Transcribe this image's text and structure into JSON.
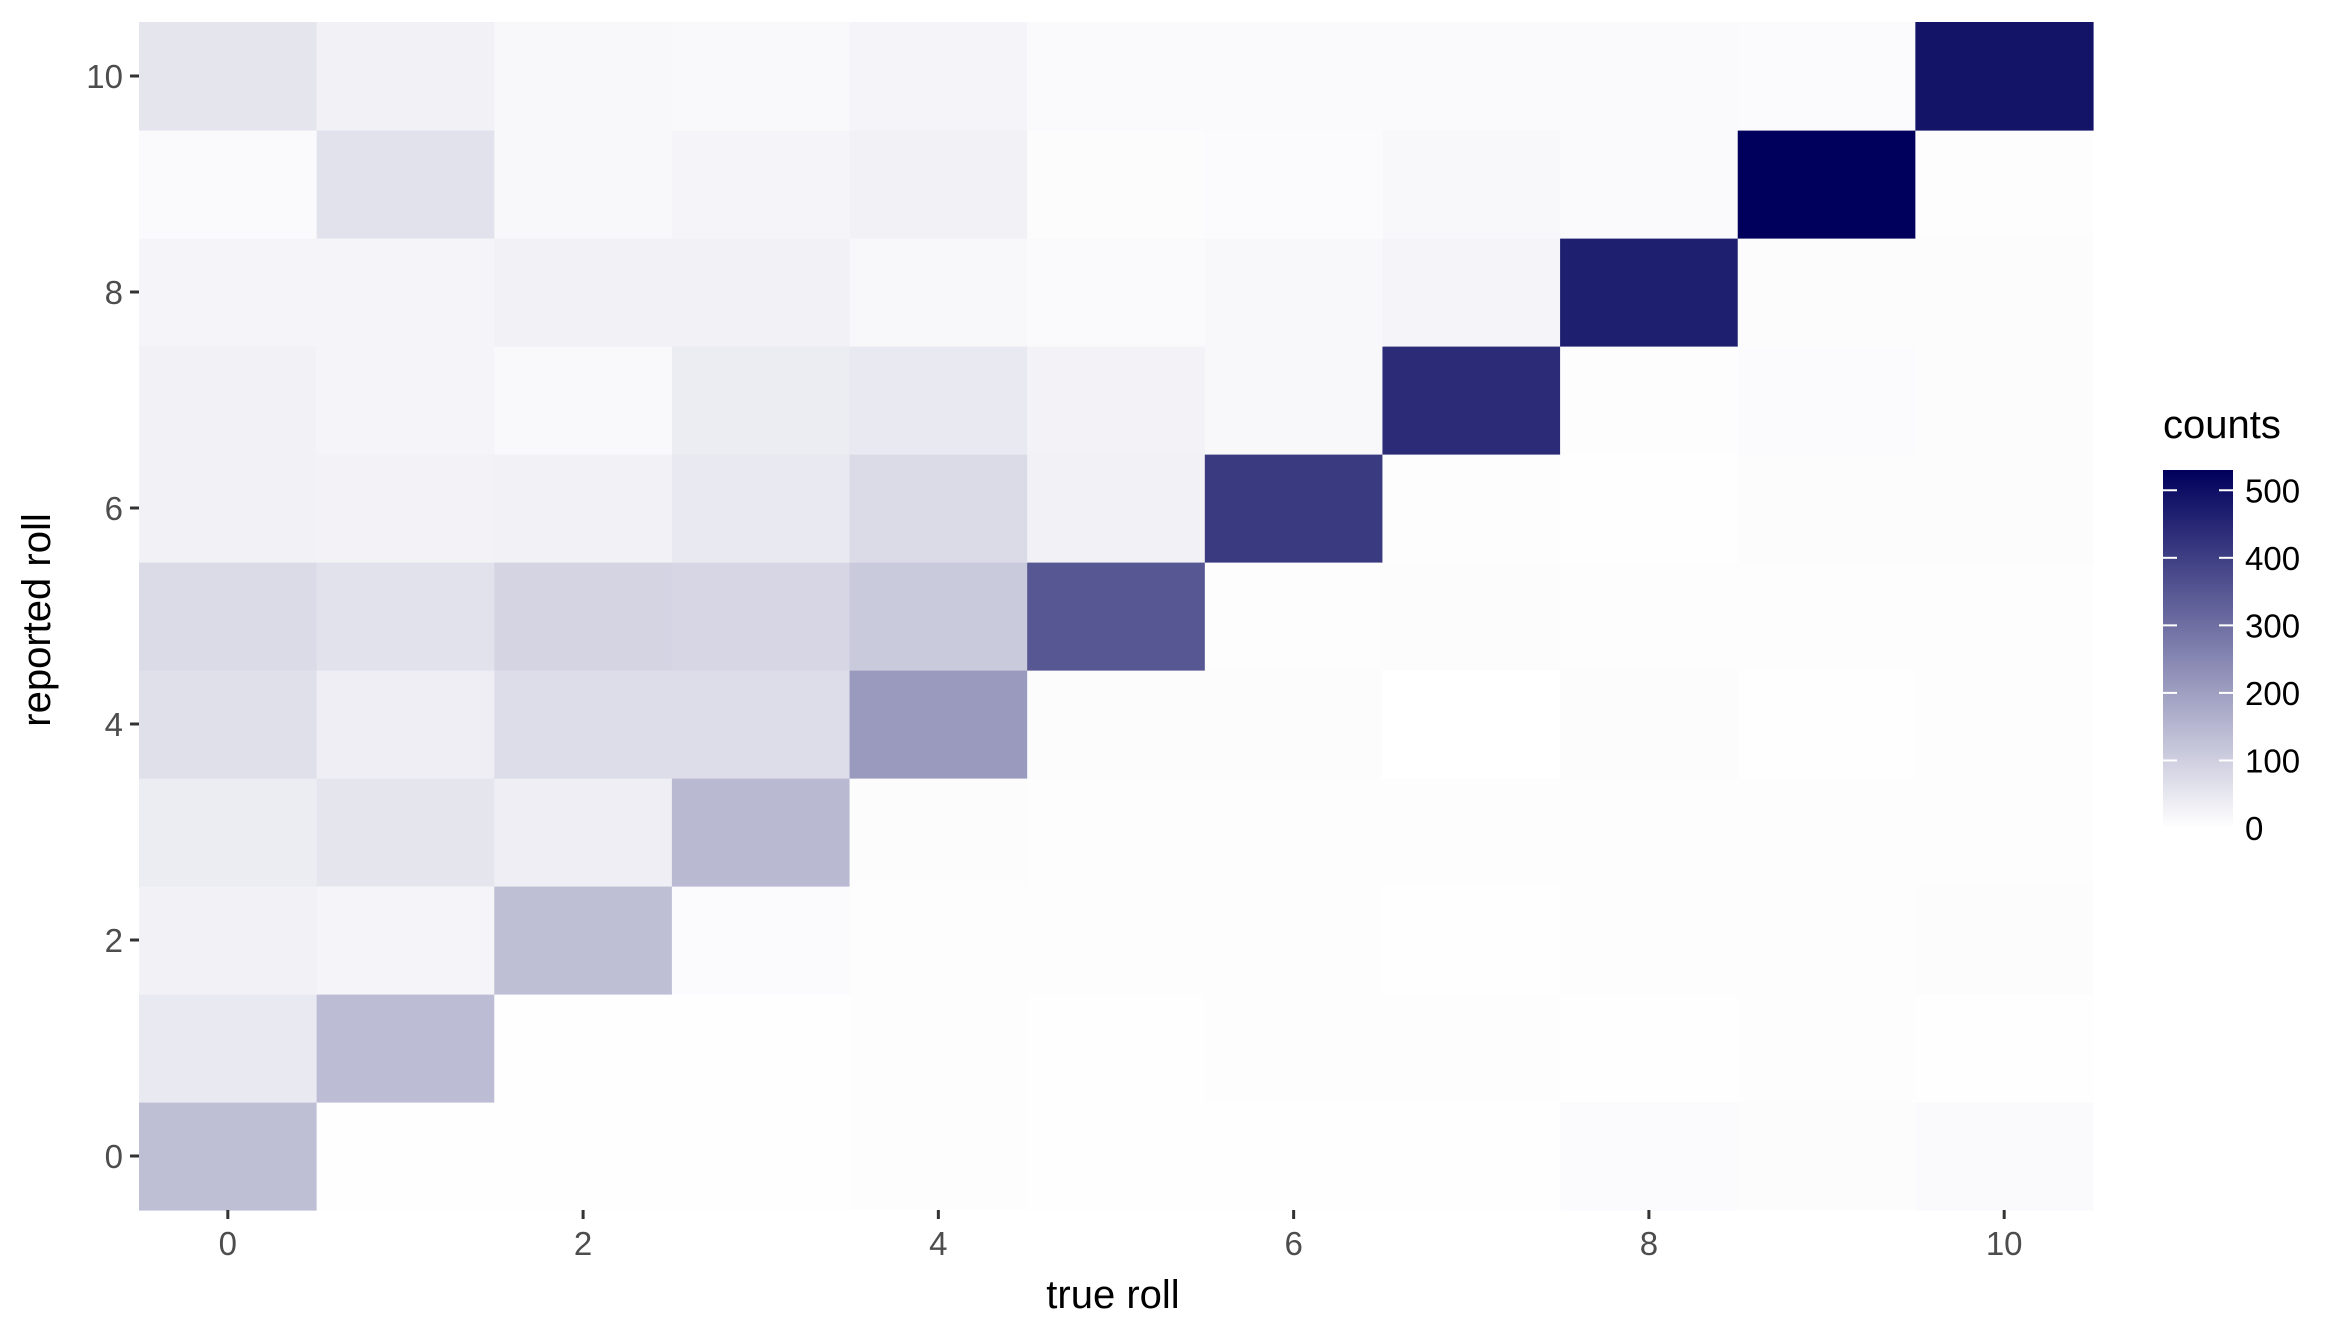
{
  "chart_data": {
    "type": "heatmap",
    "xlabel": "true roll",
    "ylabel": "reported roll",
    "x": [
      0,
      1,
      2,
      3,
      4,
      5,
      6,
      7,
      8,
      9,
      10
    ],
    "y": [
      0,
      1,
      2,
      3,
      4,
      5,
      6,
      7,
      8,
      9,
      10
    ],
    "x_ticks": [
      0,
      2,
      4,
      6,
      8,
      10
    ],
    "y_ticks": [
      0,
      2,
      4,
      6,
      8,
      10
    ],
    "xlim": [
      -0.5,
      10.5
    ],
    "ylim": [
      -0.5,
      10.5
    ],
    "grid": false,
    "legend": {
      "title": "counts",
      "position": "right",
      "ticks": [
        0,
        100,
        200,
        300,
        400,
        500
      ],
      "range": [
        0,
        530
      ],
      "low_color": "#ffffff",
      "high_color": "#00005c"
    },
    "counts": [
      [
        135,
        3,
        3,
        3,
        5,
        3,
        3,
        3,
        8,
        6,
        10
      ],
      [
        45,
        140,
        3,
        3,
        4,
        3,
        5,
        4,
        3,
        4,
        3
      ],
      [
        30,
        20,
        135,
        8,
        4,
        4,
        5,
        3,
        4,
        5,
        7
      ],
      [
        40,
        55,
        35,
        145,
        6,
        5,
        5,
        5,
        5,
        5,
        5
      ],
      [
        65,
        35,
        70,
        70,
        210,
        6,
        7,
        1,
        7,
        2,
        4
      ],
      [
        75,
        60,
        90,
        85,
        110,
        350,
        5,
        7,
        5,
        5,
        5
      ],
      [
        30,
        25,
        30,
        45,
        75,
        30,
        410,
        5,
        2,
        6,
        6
      ],
      [
        28,
        20,
        13,
        40,
        45,
        25,
        15,
        440,
        5,
        8,
        6
      ],
      [
        20,
        20,
        30,
        30,
        15,
        10,
        15,
        20,
        465,
        7,
        6
      ],
      [
        10,
        60,
        15,
        20,
        28,
        7,
        8,
        15,
        10,
        530,
        5
      ],
      [
        55,
        30,
        15,
        12,
        20,
        10,
        10,
        10,
        10,
        8,
        490
      ]
    ]
  }
}
